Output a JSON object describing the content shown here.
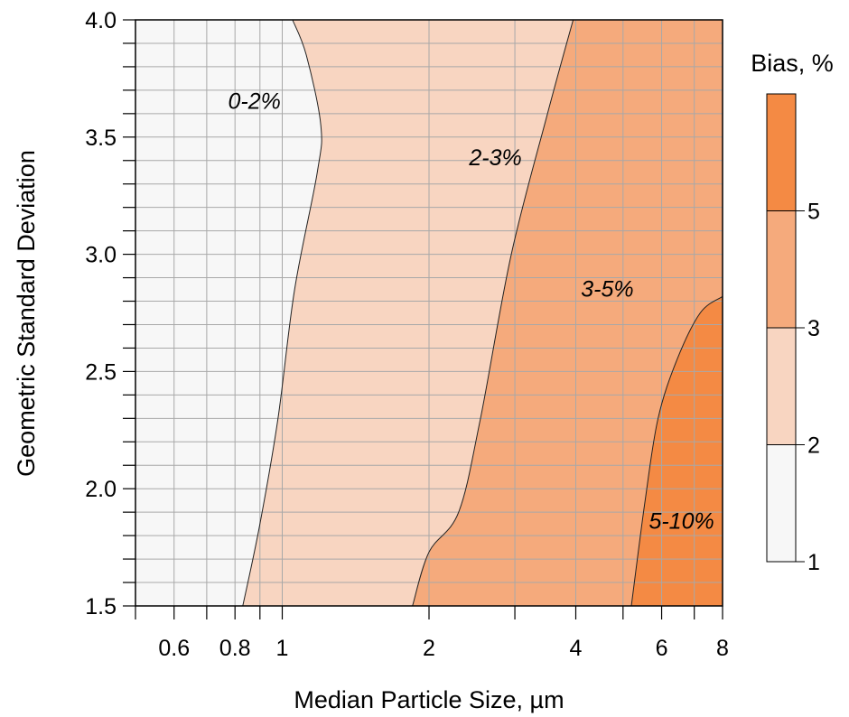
{
  "chart_data": {
    "type": "contour",
    "xlabel": "Median Particle Size, µm",
    "ylabel": "Geometric Standard Deviation",
    "xscale": "log",
    "xlim": [
      0.5,
      8
    ],
    "ylim": [
      1.5,
      4.0
    ],
    "xticks": [
      {
        "value": 0.6,
        "label": "0.6"
      },
      {
        "value": 0.8,
        "label": "0.8"
      },
      {
        "value": 1,
        "label": "1"
      },
      {
        "value": 2,
        "label": "2"
      },
      {
        "value": 4,
        "label": "4"
      },
      {
        "value": 6,
        "label": "6"
      },
      {
        "value": 8,
        "label": "8"
      }
    ],
    "yticks": [
      {
        "value": 1.5,
        "label": "1.5"
      },
      {
        "value": 2.0,
        "label": "2.0"
      },
      {
        "value": 2.5,
        "label": "2.5"
      },
      {
        "value": 3.0,
        "label": "3.0"
      },
      {
        "value": 3.5,
        "label": "3.5"
      },
      {
        "value": 4.0,
        "label": "4.0"
      }
    ],
    "grid": true,
    "levels": [
      {
        "range": "0-2%",
        "label": "0-2%",
        "color": "#f7f7f7"
      },
      {
        "range": "2-3%",
        "label": "2-3%",
        "color": "#f8d5c1"
      },
      {
        "range": "3-5%",
        "label": "3-5%",
        "color": "#f5aa7c"
      },
      {
        "range": "5-10%",
        "label": "5-10%",
        "color": "#f48a44"
      }
    ],
    "contours": [
      {
        "level": 2,
        "points": [
          [
            0.83,
            1.5
          ],
          [
            0.9,
            1.85
          ],
          [
            0.98,
            2.3
          ],
          [
            1.06,
            2.85
          ],
          [
            1.18,
            3.35
          ],
          [
            1.2,
            3.55
          ],
          [
            1.12,
            3.85
          ],
          [
            1.05,
            4.0
          ]
        ]
      },
      {
        "level": 3,
        "points": [
          [
            1.85,
            1.5
          ],
          [
            2.0,
            1.73
          ],
          [
            2.3,
            1.9
          ],
          [
            2.55,
            2.3
          ],
          [
            2.95,
            3.0
          ],
          [
            3.5,
            3.6
          ],
          [
            3.95,
            4.0
          ]
        ]
      },
      {
        "level": 5,
        "points": [
          [
            5.2,
            1.5
          ],
          [
            5.55,
            1.95
          ],
          [
            5.9,
            2.3
          ],
          [
            6.45,
            2.55
          ],
          [
            7.2,
            2.75
          ],
          [
            8.0,
            2.82
          ]
        ]
      }
    ],
    "colorbar": {
      "title": "Bias, %",
      "ticks": [
        1,
        2,
        3,
        5
      ],
      "tick_labels": [
        "1",
        "2",
        "3",
        "5"
      ],
      "bands": [
        {
          "from": 1,
          "to": 2,
          "color": "#f7f7f7"
        },
        {
          "from": 2,
          "to": 3,
          "color": "#f8d5c1"
        },
        {
          "from": 3,
          "to": 5,
          "color": "#f5aa7c"
        },
        {
          "from": 5,
          "to": 10,
          "color": "#f48a44"
        }
      ]
    }
  }
}
